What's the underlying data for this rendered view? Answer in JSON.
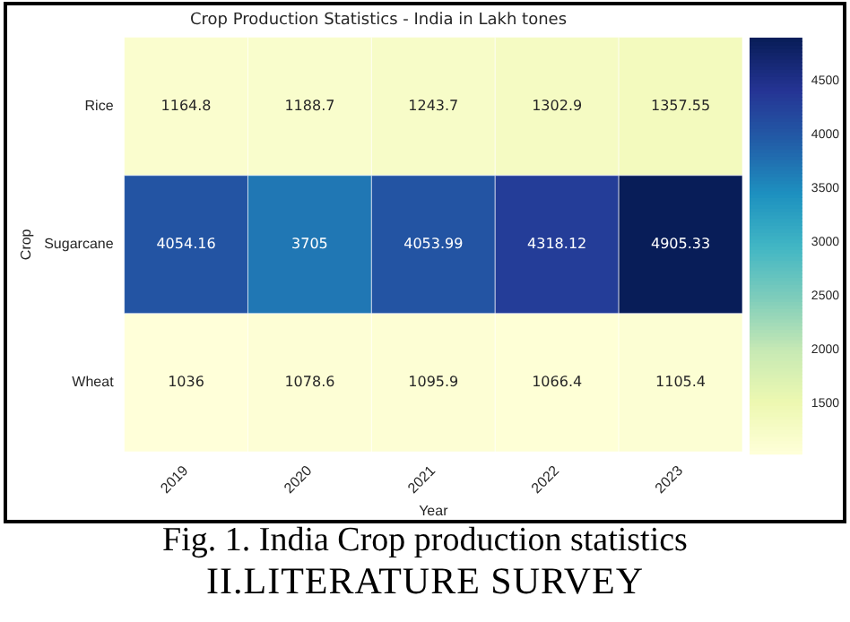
{
  "chart_data": {
    "type": "heatmap",
    "title": "Crop Production Statistics - India in Lakh tones",
    "xlabel": "Year",
    "ylabel": "Crop",
    "categories": [
      "2019",
      "2020",
      "2021",
      "2022",
      "2023"
    ],
    "y_categories": [
      "Rice",
      "Sugarcane",
      "Wheat"
    ],
    "cells": [
      [
        1164.8,
        1188.7,
        1243.7,
        1302.9,
        1357.55
      ],
      [
        4054.16,
        3705,
        4053.99,
        4318.12,
        4905.33
      ],
      [
        1036,
        1078.6,
        1095.9,
        1066.4,
        1105.4
      ]
    ],
    "data_labels": true,
    "clim": [
      1036,
      4905.33
    ],
    "cticks": [
      1500,
      2000,
      2500,
      3000,
      3500,
      4000,
      4500
    ],
    "annotations": [
      "Fig. 1. India Crop production statistics",
      "II.LITERATURE SURVEY"
    ]
  }
}
